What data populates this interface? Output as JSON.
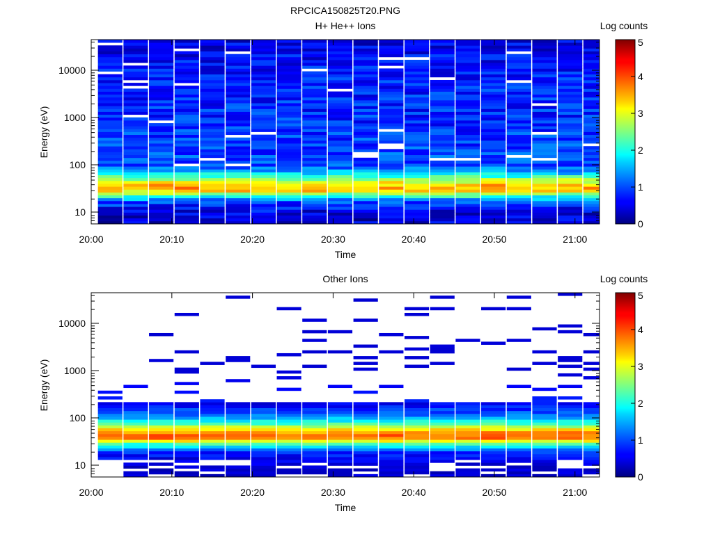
{
  "figure_title": "RPCICA150825T20.PNG",
  "chart_data": [
    {
      "type": "heatmap",
      "title": "H+ He++ Ions",
      "xlabel": "Time",
      "ylabel": "Energy (eV)",
      "yscale": "log",
      "xlim": [
        "20:00",
        "21:03"
      ],
      "ylim": [
        6,
        45000
      ],
      "xticks": [
        "20:00",
        "20:10",
        "20:20",
        "20:30",
        "20:40",
        "20:50",
        "21:00"
      ],
      "yticks": [
        "10",
        "100",
        "1000",
        "10000"
      ],
      "colorbar": {
        "label": "Log counts",
        "min": 0,
        "max": 5,
        "ticks": [
          "0",
          "1",
          "2",
          "3",
          "4",
          "5"
        ]
      },
      "time_bins": [
        "20:02:20",
        "20:05:30",
        "20:08:40",
        "20:11:50",
        "20:15:00",
        "20:18:10",
        "20:21:20",
        "20:24:30",
        "20:27:40",
        "20:30:50",
        "20:34:00",
        "20:37:10",
        "20:40:20",
        "20:43:30",
        "20:46:40",
        "20:49:50",
        "20:53:00",
        "20:56:10",
        "20:59:20",
        "21:02:30"
      ],
      "energy_profile": [
        {
          "energy": 8,
          "log_counts": 0.4
        },
        {
          "energy": 12,
          "log_counts": 0.6
        },
        {
          "energy": 18,
          "log_counts": 1.0
        },
        {
          "energy": 25,
          "log_counts": 2.4
        },
        {
          "energy": 32,
          "log_counts": 3.6
        },
        {
          "energy": 40,
          "log_counts": 3.4
        },
        {
          "energy": 50,
          "log_counts": 2.8
        },
        {
          "energy": 65,
          "log_counts": 1.8
        },
        {
          "energy": 100,
          "log_counts": 1.0
        },
        {
          "energy": 1000,
          "log_counts": 0.8
        },
        {
          "energy": 10000,
          "log_counts": 0.7
        },
        {
          "energy": 40000,
          "log_counts": 0.5
        }
      ]
    },
    {
      "type": "heatmap",
      "title": "Other Ions",
      "xlabel": "Time",
      "ylabel": "Energy (eV)",
      "yscale": "log",
      "xlim": [
        "20:00",
        "21:03"
      ],
      "ylim": [
        6,
        45000
      ],
      "xticks": [
        "20:00",
        "20:10",
        "20:20",
        "20:30",
        "20:40",
        "20:50",
        "21:00"
      ],
      "yticks": [
        "10",
        "100",
        "1000",
        "10000"
      ],
      "colorbar": {
        "label": "Log counts",
        "min": 0,
        "max": 5,
        "ticks": [
          "0",
          "1",
          "2",
          "3",
          "4",
          "5"
        ]
      },
      "time_bins": [
        "20:02:20",
        "20:05:30",
        "20:08:40",
        "20:11:50",
        "20:15:00",
        "20:18:10",
        "20:21:20",
        "20:24:30",
        "20:27:40",
        "20:30:50",
        "20:34:00",
        "20:37:10",
        "20:40:20",
        "20:43:30",
        "20:46:40",
        "20:49:50",
        "20:53:00",
        "20:56:10",
        "20:59:20",
        "21:02:30"
      ],
      "energy_profile": [
        {
          "energy": 10,
          "log_counts": 0.3
        },
        {
          "energy": 20,
          "log_counts": 0.8
        },
        {
          "energy": 30,
          "log_counts": 2.2
        },
        {
          "energy": 38,
          "log_counts": 3.8
        },
        {
          "energy": 48,
          "log_counts": 3.9
        },
        {
          "energy": 60,
          "log_counts": 3.2
        },
        {
          "energy": 80,
          "log_counts": 2.2
        },
        {
          "energy": 120,
          "log_counts": 1.2
        },
        {
          "energy": 200,
          "log_counts": 0.6
        },
        {
          "energy": 1000,
          "log_counts": 0.2
        },
        {
          "energy": 10000,
          "log_counts": 0.2
        }
      ]
    }
  ]
}
